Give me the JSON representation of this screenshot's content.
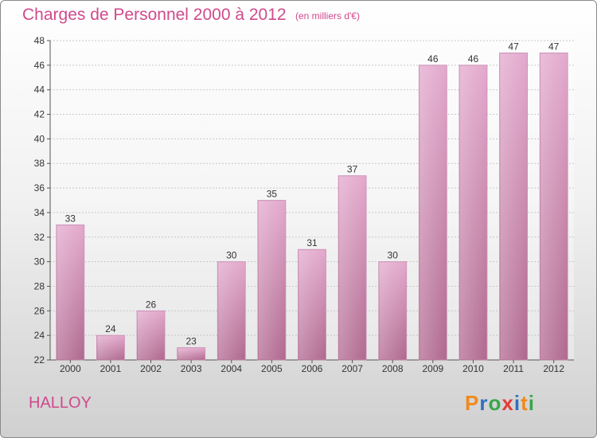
{
  "title": "Charges de Personnel 2000 à 2012",
  "subtitle": "(en milliers d'€)",
  "commune": "HALLOY",
  "logo": {
    "letters": [
      "P",
      "r",
      "o",
      "x",
      "i",
      "t",
      "i"
    ],
    "colors": [
      "#f08a1c",
      "#2f6fc1",
      "#38a64a",
      "#e43a3a",
      "#2f6fc1",
      "#f08a1c",
      "#38a64a"
    ]
  },
  "chart_data": {
    "type": "bar",
    "categories": [
      "2000",
      "2001",
      "2002",
      "2003",
      "2004",
      "2005",
      "2006",
      "2007",
      "2008",
      "2009",
      "2010",
      "2011",
      "2012"
    ],
    "values": [
      33,
      24,
      26,
      23,
      30,
      35,
      31,
      37,
      30,
      46,
      46,
      47,
      47
    ],
    "ylim": [
      22,
      48
    ],
    "yticks": [
      22,
      24,
      26,
      28,
      30,
      32,
      34,
      36,
      38,
      40,
      42,
      44,
      46,
      48
    ],
    "grid": true,
    "bar_color": "#c97aa8"
  }
}
